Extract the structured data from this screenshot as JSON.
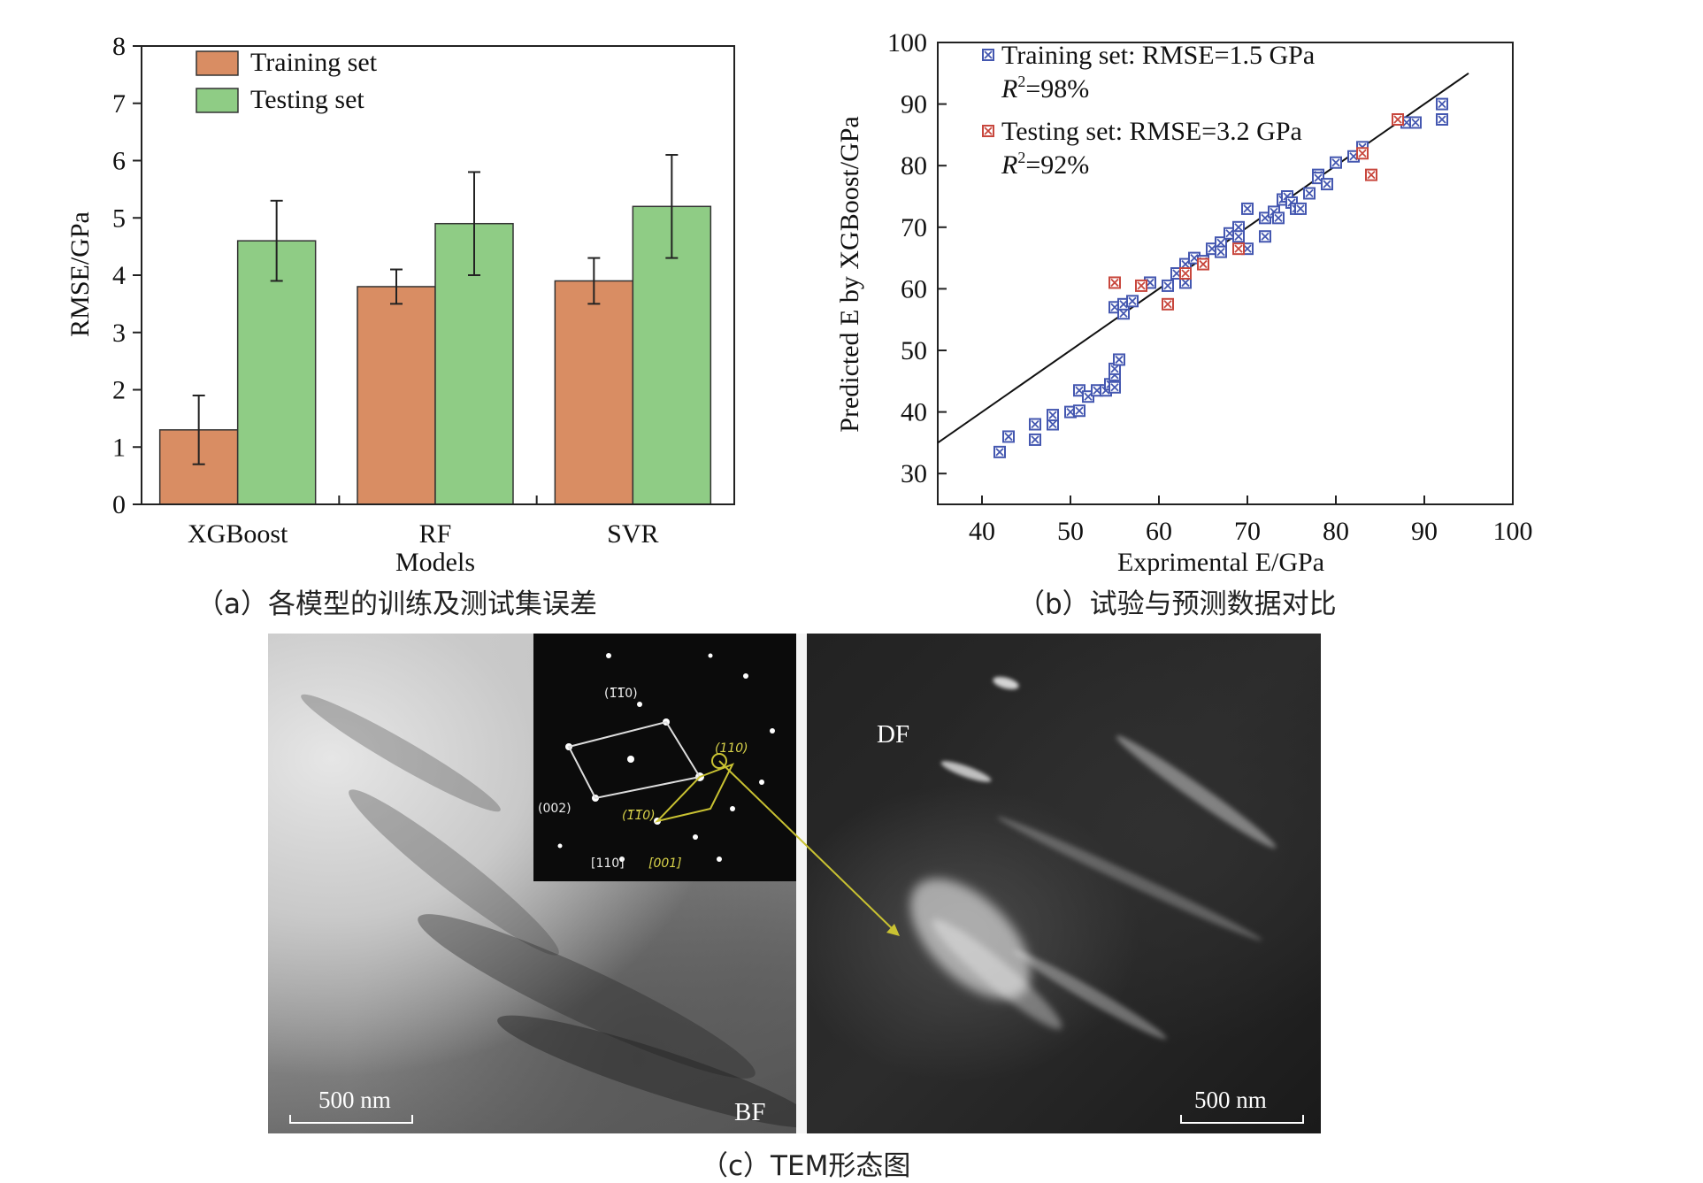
{
  "chart_data": [
    {
      "type": "bar",
      "categories": [
        "XGBoost",
        "RF",
        "SVR"
      ],
      "series": [
        {
          "name": "Training set",
          "values": [
            1.3,
            3.8,
            3.9
          ],
          "errors": [
            0.6,
            0.3,
            0.4
          ],
          "color": "#d98d63"
        },
        {
          "name": "Testing set",
          "values": [
            4.6,
            4.9,
            5.2
          ],
          "errors": [
            0.7,
            0.9,
            0.9
          ],
          "color": "#8fcc85"
        }
      ],
      "title": "",
      "xlabel": "Models",
      "ylabel": "RMSE/GPa",
      "ylim": [
        0,
        8
      ],
      "yticks": [
        "0",
        "1",
        "2",
        "3",
        "4",
        "5",
        "6",
        "7",
        "8"
      ],
      "legend_position": "top-left",
      "grid": false
    },
    {
      "type": "scatter",
      "title": "",
      "xlabel": "Exprimental E/GPa",
      "ylabel": "Predicted E by XGBoost/GPa",
      "xlim": [
        35,
        100
      ],
      "ylim": [
        25,
        100
      ],
      "xticks": [
        "40",
        "50",
        "60",
        "70",
        "80",
        "90",
        "100"
      ],
      "yticks": [
        "30",
        "40",
        "50",
        "60",
        "70",
        "80",
        "90",
        "100"
      ],
      "reference_line": "y = x",
      "legend_position": "top-left",
      "grid": false,
      "series": [
        {
          "name": "Training set: RMSE=1.5 GPa",
          "name_line2": "R2=98%",
          "marker": "boxed-x",
          "color": "#4457b0",
          "points": [
            [
              42,
              33.5
            ],
            [
              43,
              36
            ],
            [
              46,
              35.5
            ],
            [
              46,
              38
            ],
            [
              48,
              38
            ],
            [
              48,
              39.5
            ],
            [
              50,
              40
            ],
            [
              51,
              40.2
            ],
            [
              51,
              43.5
            ],
            [
              52,
              42.5
            ],
            [
              53,
              43.5
            ],
            [
              54,
              43.5
            ],
            [
              54.5,
              44.5
            ],
            [
              55,
              44
            ],
            [
              55,
              46
            ],
            [
              55,
              47
            ],
            [
              55.5,
              48.5
            ],
            [
              55,
              57
            ],
            [
              56,
              56
            ],
            [
              56,
              57.5
            ],
            [
              57,
              58
            ],
            [
              59,
              61
            ],
            [
              61,
              60.5
            ],
            [
              62,
              62.5
            ],
            [
              63,
              61
            ],
            [
              63,
              64
            ],
            [
              64,
              65
            ],
            [
              65,
              64.5
            ],
            [
              66,
              66.5
            ],
            [
              67,
              67.5
            ],
            [
              67,
              66
            ],
            [
              68,
              69
            ],
            [
              69,
              70
            ],
            [
              69,
              68.5
            ],
            [
              70,
              66.5
            ],
            [
              70,
              73
            ],
            [
              72,
              68.5
            ],
            [
              72,
              71.5
            ],
            [
              73,
              72.5
            ],
            [
              73.5,
              71.5
            ],
            [
              74,
              74.5
            ],
            [
              74.5,
              75
            ],
            [
              75,
              74
            ],
            [
              75.5,
              73
            ],
            [
              76,
              73
            ],
            [
              77,
              75.5
            ],
            [
              78,
              78.5
            ],
            [
              78,
              78
            ],
            [
              79,
              77
            ],
            [
              80,
              80.5
            ],
            [
              82,
              81.5
            ],
            [
              83,
              83
            ],
            [
              87,
              87.5
            ],
            [
              88,
              87
            ],
            [
              89,
              87
            ],
            [
              92,
              87.5
            ],
            [
              92,
              90
            ]
          ]
        },
        {
          "name": "Testing set: RMSE=3.2 GPa",
          "name_line2": "R2=92%",
          "marker": "circled-x",
          "color": "#c8473d",
          "points": [
            [
              55,
              61
            ],
            [
              58,
              60.5
            ],
            [
              61,
              57.5
            ],
            [
              63,
              62.5
            ],
            [
              65,
              64
            ],
            [
              69,
              66.5
            ],
            [
              83,
              82
            ],
            [
              84,
              78.5
            ],
            [
              87,
              87.5
            ]
          ]
        }
      ]
    }
  ],
  "captions": {
    "a": "（a）各模型的训练及测试集误差",
    "b": "（b）试验与预测数据对比",
    "c": "（c）TEM形态图"
  },
  "tem": {
    "left_label": "BF",
    "right_label": "DF",
    "left_scale": "500 nm",
    "right_scale": "500 nm",
    "saed_labels": {
      "l1": "(1̅1̅0)",
      "l2": "(002)",
      "l3": "(110)",
      "l4": "(1̅1̅0)",
      "l5": "[110]",
      "l6": "[001]"
    }
  }
}
